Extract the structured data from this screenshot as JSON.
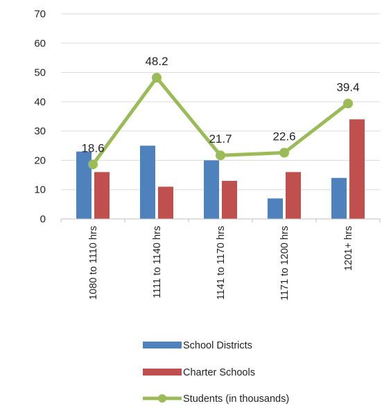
{
  "chart_data": {
    "type": "bar",
    "categories": [
      "1080 to 1110 hrs",
      "1111 to 1140 hrs",
      "1141 to 1170 hrs",
      "1171 to 1200 hrs",
      "1201+ hrs"
    ],
    "series": [
      {
        "name": "School Districts",
        "type": "bar",
        "color": "#4F81BD",
        "values": [
          23,
          25,
          20,
          7,
          14
        ]
      },
      {
        "name": "Charter Schools",
        "type": "bar",
        "color": "#C0504D",
        "values": [
          16,
          11,
          13,
          16,
          34
        ]
      },
      {
        "name": "Students (in thousands)",
        "type": "line",
        "color": "#9BBB59",
        "values": [
          18.6,
          48.2,
          21.7,
          22.6,
          39.4
        ],
        "data_labels": [
          "18.6",
          "48.2",
          "21.7",
          "22.6",
          "39.4"
        ]
      }
    ],
    "ylim": [
      0,
      70
    ],
    "yticks": [
      0,
      10,
      20,
      30,
      40,
      50,
      60,
      70
    ],
    "grid": true,
    "legend_position": "bottom"
  }
}
